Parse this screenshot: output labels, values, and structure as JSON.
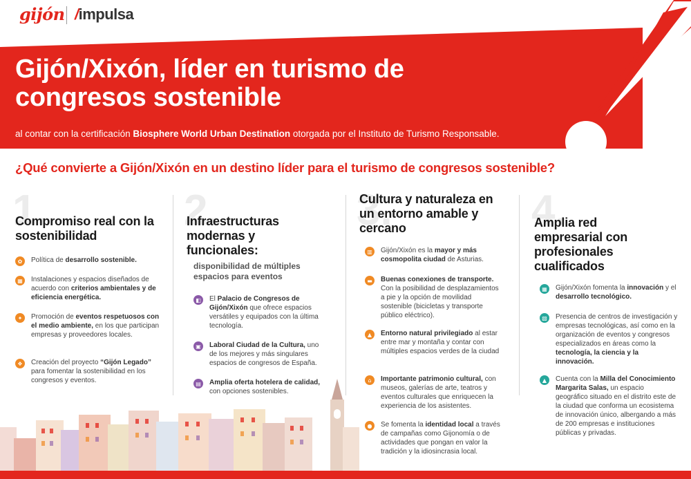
{
  "header": {
    "logo_gijon": "gijón",
    "logo_impulsa_slash": "/",
    "logo_impulsa": "impulsa"
  },
  "colors": {
    "brand_red": "#e3261d",
    "orange": "#f08a24",
    "purple": "#8b5aa8",
    "teal": "#25a79b"
  },
  "hero": {
    "title": "Gijón/Xixón, líder en turismo de congresos sostenible",
    "subtitle_pre": "al contar con la certificación ",
    "subtitle_bold": "Biosphere World Urban Destination",
    "subtitle_post": " otorgada por el Instituto de Turismo Responsable."
  },
  "question": "¿Qué convierte a Gijón/Xixón en un destino líder para el turismo de congresos sostenible?",
  "columns": [
    {
      "number": "1.",
      "title": "Compromiso real con la sostenibilidad",
      "items": [
        {
          "icon": "leaf-icon",
          "pre": "Política de ",
          "bold": "desarrollo sostenible.",
          "post": ""
        },
        {
          "icon": "building-icon",
          "pre": "Instalaciones y espacios diseñados de acuerdo con ",
          "bold": "criterios ambientales y de eficiencia energética.",
          "post": ""
        },
        {
          "icon": "handshake-icon",
          "pre": "Promoción de ",
          "bold": "eventos respetuosos con el medio ambiente,",
          "post": " en los que participan empresas y proveedores locales."
        },
        {
          "icon": "legacy-icon",
          "pre": "Creación del proyecto ",
          "bold": "“Gijón Legado”",
          "post": " para fomentar la sostenibilidad en los congresos y eventos."
        }
      ]
    },
    {
      "number": "2.",
      "title": "Infraestructuras modernas y funcionales:",
      "subtitle": "disponibilidad de múltiples espacios para eventos",
      "items": [
        {
          "icon": "palace-icon",
          "pre": "El ",
          "bold": "Palacio de Congresos de Gijón/Xixón",
          "post": " que ofrece espacios versátiles y equipados con la última tecnología."
        },
        {
          "icon": "laboral-icon",
          "pre": "",
          "bold": "Laboral Ciudad de la Cultura,",
          "post": " uno de los mejores y más singulares espacios de congresos de España."
        },
        {
          "icon": "hotel-icon",
          "pre": "",
          "bold": "Amplia oferta hotelera de calidad,",
          "post": " con opciones sostenibles."
        }
      ]
    },
    {
      "number": "3.",
      "title": "Cultura y naturaleza en un entorno amable y cercano",
      "items": [
        {
          "icon": "city-icon",
          "pre": "Gijón/Xixón es la ",
          "bold": "mayor y más cosmopolita ciudad",
          "post": " de Asturias."
        },
        {
          "icon": "bus-icon",
          "pre": "",
          "bold": "Buenas conexiones de transporte.",
          "post": " Con la posibilidad de desplazamientos a pie y la opción de movilidad sostenible (bicicletas y transporte público eléctrico)."
        },
        {
          "icon": "nature-icon",
          "pre": "",
          "bold": "Entorno natural privilegiado",
          "post": " al estar entre mar y montaña y contar con múltiples espacios verdes de la ciudad"
        },
        {
          "icon": "museum-icon",
          "pre": "",
          "bold": "Importante patrimonio cultural,",
          "post": " con museos, galerías de arte, teatros y eventos culturales que enriquecen la experiencia de los asistentes."
        },
        {
          "icon": "identity-icon",
          "pre": "Se fomenta la ",
          "bold": "identidad local",
          "post": " a través de campañas como Gijonomía o de actividades que pongan en valor la tradición y la idiosincrasia local."
        }
      ]
    },
    {
      "number": "4.",
      "title": "Amplia red empresarial con profesionales cualificados",
      "items": [
        {
          "icon": "innovation-icon",
          "pre": "Gijón/Xixón fomenta la ",
          "bold": "innovación",
          "post": " y el ",
          "bold2": "desarrollo tecnológico."
        },
        {
          "icon": "research-icon",
          "pre": "Presencia de centros de investigación y empresas tecnológicas, así como en la organización de eventos y congresos especializados en áreas como la ",
          "bold": "tecnología, la ciencia y la innovación.",
          "post": ""
        },
        {
          "icon": "graduation-icon",
          "pre": "Cuenta con la ",
          "bold": "Milla del Conocimiento Margarita Salas,",
          "post": " un espacio geográfico situado en el distrito este de la ciudad que conforma un ecosistema de innovación único, albergando a más de 200 empresas e instituciones públicas y privadas."
        }
      ]
    }
  ]
}
